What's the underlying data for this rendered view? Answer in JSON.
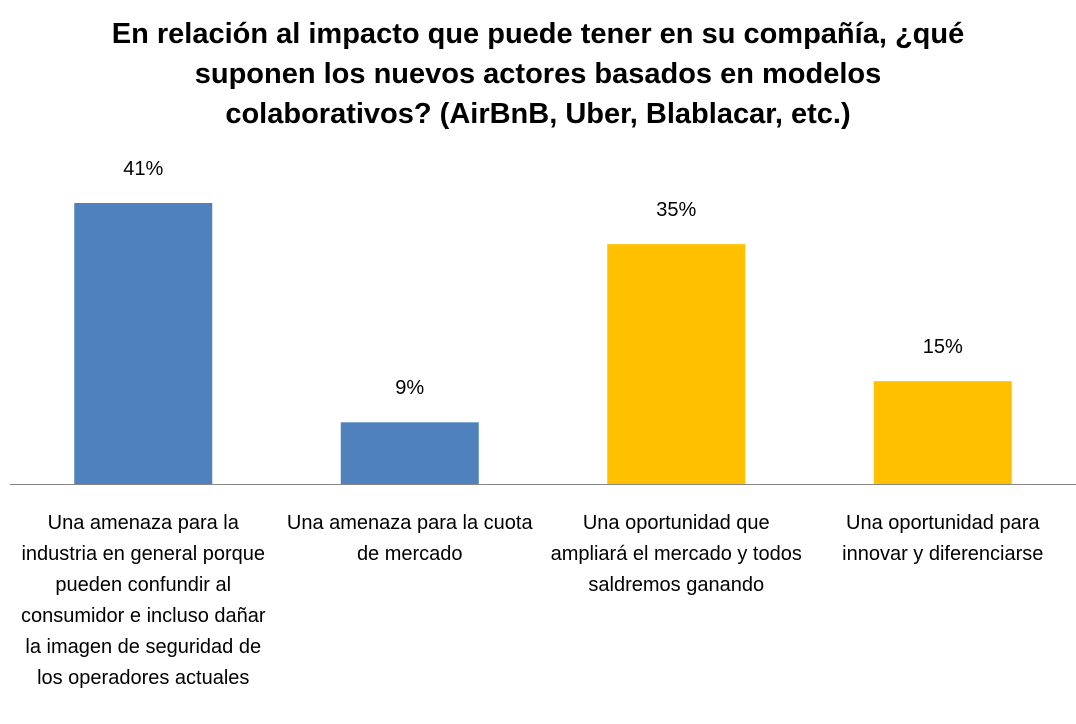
{
  "chart_data": {
    "type": "bar",
    "title": "En relación al impacto que puede tener en su compañía, ¿qué suponen los nuevos actores basados en modelos colaborativos? (AirBnB, Uber, Blablacar, etc.)",
    "categories": [
      "Una amenaza para la industria en general porque pueden confundir al consumidor e incluso dañar la imagen de seguridad de los operadores actuales",
      "Una amenaza para la cuota de mercado",
      "Una oportunidad que ampliará el mercado y todos saldremos ganando",
      "Una oportunidad para innovar y diferenciarse"
    ],
    "values": [
      41,
      9,
      35,
      15
    ],
    "value_labels": [
      "41%",
      "9%",
      "35%",
      "15%"
    ],
    "colors": [
      "#4f81bd",
      "#4f81bd",
      "#ffc000",
      "#ffc000"
    ]
  }
}
